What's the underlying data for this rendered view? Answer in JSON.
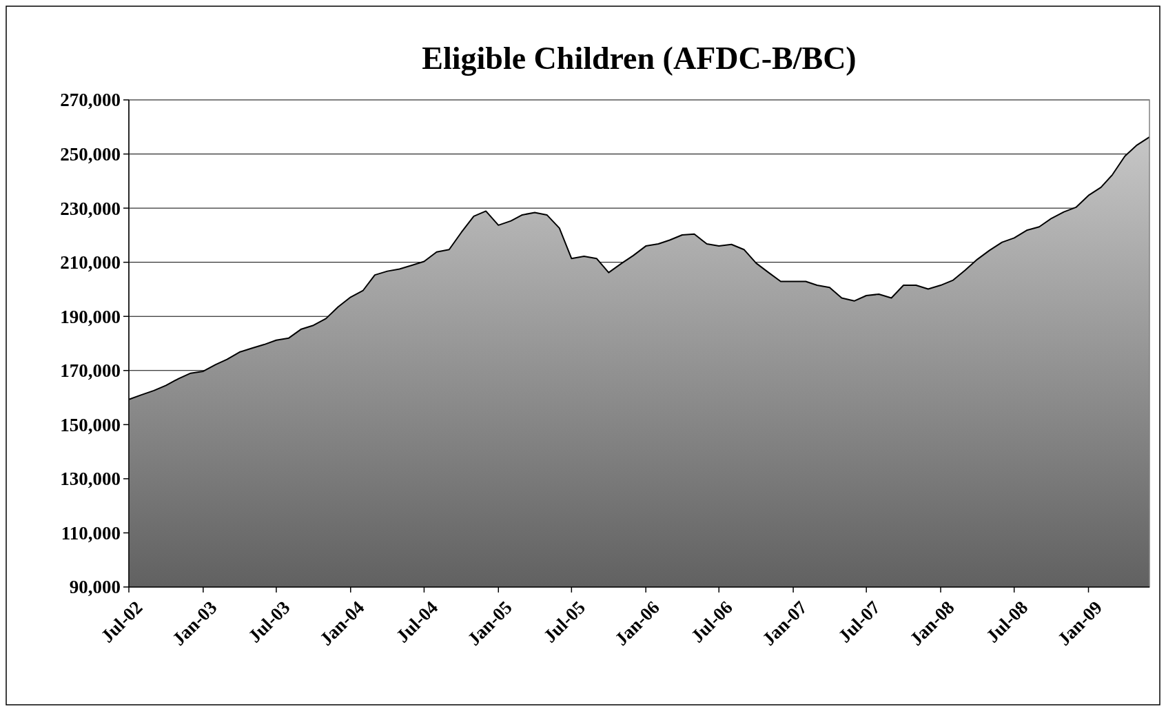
{
  "chart_data": {
    "type": "area",
    "title": "Eligible Children (AFDC-B/BC)",
    "x": [
      "2002-07",
      "2002-08",
      "2002-09",
      "2002-10",
      "2002-11",
      "2002-12",
      "2003-01",
      "2003-02",
      "2003-03",
      "2003-04",
      "2003-05",
      "2003-06",
      "2003-07",
      "2003-08",
      "2003-09",
      "2003-10",
      "2003-11",
      "2003-12",
      "2004-01",
      "2004-02",
      "2004-03",
      "2004-04",
      "2004-05",
      "2004-06",
      "2004-07",
      "2004-08",
      "2004-09",
      "2004-10",
      "2004-11",
      "2004-12",
      "2005-01",
      "2005-02",
      "2005-03",
      "2005-04",
      "2005-05",
      "2005-06",
      "2005-07",
      "2005-08",
      "2005-09",
      "2005-10",
      "2005-11",
      "2005-12",
      "2006-01",
      "2006-02",
      "2006-03",
      "2006-04",
      "2006-05",
      "2006-06",
      "2006-07",
      "2006-08",
      "2006-09",
      "2006-10",
      "2006-11",
      "2006-12",
      "2007-01",
      "2007-02",
      "2007-03",
      "2007-04",
      "2007-05",
      "2007-06",
      "2007-07",
      "2007-08",
      "2007-09",
      "2007-10",
      "2007-11",
      "2007-12",
      "2008-01",
      "2008-02",
      "2008-03",
      "2008-04",
      "2008-05",
      "2008-06",
      "2008-07",
      "2008-08",
      "2008-09",
      "2008-10",
      "2008-11",
      "2008-12",
      "2009-01",
      "2009-02",
      "2009-03",
      "2009-04",
      "2009-05",
      "2009-06"
    ],
    "series": [
      {
        "color": "#a0a0a0",
        "values": [
          159300,
          161000,
          162600,
          164500,
          167000,
          169000,
          169700,
          172200,
          174100,
          176800,
          178200,
          179600,
          181200,
          182000,
          185300,
          186700,
          189200,
          193500,
          197100,
          199600,
          205300,
          206700,
          207500,
          208900,
          210300,
          213800,
          214700,
          221000,
          227000,
          228900,
          223700,
          225300,
          227500,
          228400,
          227500,
          222600,
          211400,
          212200,
          211400,
          206200,
          209500,
          212500,
          216000,
          216800,
          218200,
          220100,
          220400,
          216800,
          216000,
          216600,
          214700,
          209700,
          206200,
          202900,
          202900,
          202900,
          201500,
          200700,
          196800,
          195700,
          197700,
          198200,
          196800,
          201500,
          201500,
          200100,
          201500,
          203400,
          207000,
          211100,
          214400,
          217400,
          219000,
          221800,
          223100,
          226200,
          228600,
          230300,
          234700,
          237700,
          242300,
          249200,
          253300,
          256300
        ]
      }
    ],
    "xlim": [
      "2002-07",
      "2009-06"
    ],
    "xticks": [
      {
        "value": "2002-07",
        "label": "Jul-02"
      },
      {
        "value": "2003-01",
        "label": "Jan-03"
      },
      {
        "value": "2003-07",
        "label": "Jul-03"
      },
      {
        "value": "2004-01",
        "label": "Jan-04"
      },
      {
        "value": "2004-07",
        "label": "Jul-04"
      },
      {
        "value": "2005-01",
        "label": "Jan-05"
      },
      {
        "value": "2005-07",
        "label": "Jul-05"
      },
      {
        "value": "2006-01",
        "label": "Jan-06"
      },
      {
        "value": "2006-07",
        "label": "Jul-06"
      },
      {
        "value": "2007-01",
        "label": "Jan-07"
      },
      {
        "value": "2007-07",
        "label": "Jul-07"
      },
      {
        "value": "2008-01",
        "label": "Jan-08"
      },
      {
        "value": "2008-07",
        "label": "Jul-08"
      },
      {
        "value": "2009-01",
        "label": "Jan-09"
      }
    ],
    "ylim": [
      90000,
      270000
    ],
    "yticks": [
      {
        "value": 90000,
        "label": "90,000"
      },
      {
        "value": 110000,
        "label": "110,000"
      },
      {
        "value": 130000,
        "label": "130,000"
      },
      {
        "value": 150000,
        "label": "150,000"
      },
      {
        "value": 170000,
        "label": "170,000"
      },
      {
        "value": 190000,
        "label": "190,000"
      },
      {
        "value": 210000,
        "label": "210,000"
      },
      {
        "value": 230000,
        "label": "230,000"
      },
      {
        "value": 250000,
        "label": "250,000"
      },
      {
        "value": 270000,
        "label": "270,000"
      }
    ],
    "grid": "y"
  }
}
